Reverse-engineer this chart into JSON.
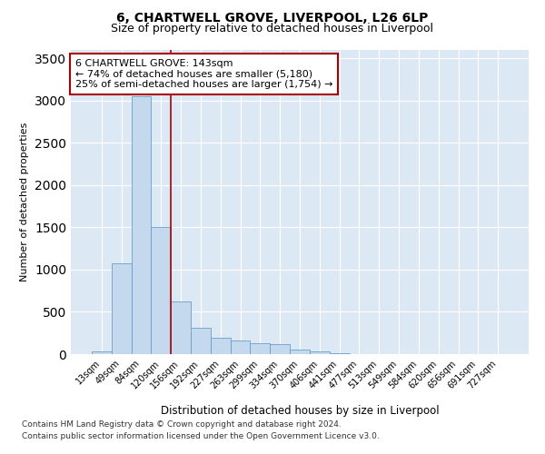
{
  "title_line1": "6, CHARTWELL GROVE, LIVERPOOL, L26 6LP",
  "title_line2": "Size of property relative to detached houses in Liverpool",
  "xlabel": "Distribution of detached houses by size in Liverpool",
  "ylabel": "Number of detached properties",
  "categories": [
    "13sqm",
    "49sqm",
    "84sqm",
    "120sqm",
    "156sqm",
    "192sqm",
    "227sqm",
    "263sqm",
    "299sqm",
    "334sqm",
    "370sqm",
    "406sqm",
    "441sqm",
    "477sqm",
    "513sqm",
    "549sqm",
    "584sqm",
    "620sqm",
    "656sqm",
    "691sqm",
    "727sqm"
  ],
  "values": [
    30,
    1080,
    3050,
    1500,
    620,
    310,
    190,
    160,
    125,
    115,
    55,
    30,
    10,
    0,
    0,
    0,
    0,
    0,
    0,
    0,
    0
  ],
  "bar_color": "#c5d9ee",
  "bar_edge_color": "#6a9fc8",
  "vline_color": "#aa0000",
  "annotation_text": "6 CHARTWELL GROVE: 143sqm\n← 74% of detached houses are smaller (5,180)\n25% of semi-detached houses are larger (1,754) →",
  "annotation_box_color": "#ffffff",
  "annotation_box_edge_color": "#aa0000",
  "ylim": [
    0,
    3600
  ],
  "yticks": [
    0,
    500,
    1000,
    1500,
    2000,
    2500,
    3000,
    3500
  ],
  "bg_color": "#ffffff",
  "plot_bg_color": "#dde8f5",
  "grid_color": "#ffffff",
  "footer_line1": "Contains HM Land Registry data © Crown copyright and database right 2024.",
  "footer_line2": "Contains public sector information licensed under the Open Government Licence v3.0.",
  "title_fontsize": 10,
  "subtitle_fontsize": 9,
  "tick_fontsize": 7,
  "ylabel_fontsize": 8,
  "xlabel_fontsize": 8.5,
  "annotation_fontsize": 8,
  "footer_fontsize": 6.5
}
